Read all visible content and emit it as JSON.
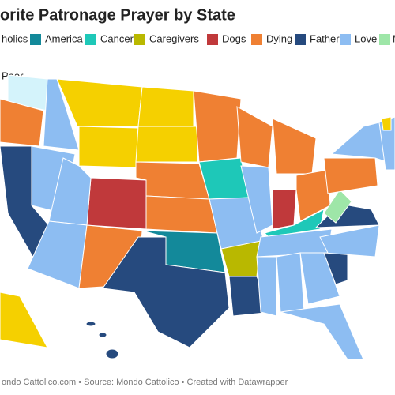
{
  "header": {
    "title": "orite Patronage Prayer by State"
  },
  "legend": [
    {
      "label": "holics",
      "color": "#d4f3fb"
    },
    {
      "label": "America",
      "color": "#13899a"
    },
    {
      "label": "Cancer",
      "color": "#1ec8b8"
    },
    {
      "label": "Caregivers",
      "color": "#b9b800"
    },
    {
      "label": "Dogs",
      "color": "#c0393b"
    },
    {
      "label": "Dying",
      "color": "#ef8033"
    },
    {
      "label": "Fathers",
      "color": "#264a7e"
    },
    {
      "label": "Love",
      "color": "#8dbdf2"
    },
    {
      "label": "M",
      "color": "#9ee6a8"
    },
    {
      "label": "Poor",
      "color": "#f5d000"
    }
  ],
  "footer": {
    "text": "ondo Cattolico.com • Source: Mondo Cattolico • Created with Datawrapper"
  }
}
